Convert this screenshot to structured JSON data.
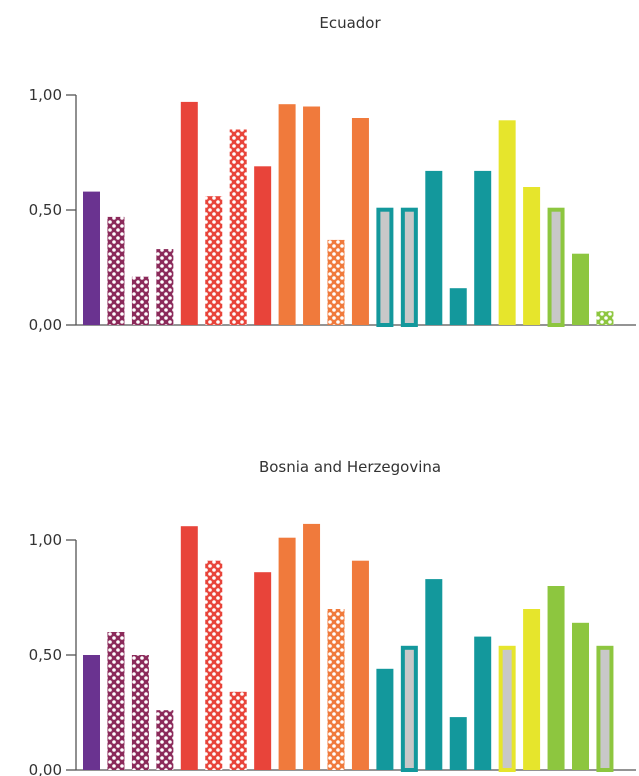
{
  "chart_data": [
    {
      "type": "bar",
      "title": "Ecuador",
      "ylim": [
        0,
        1.0
      ],
      "yticks": [
        "0,00",
        "0,50",
        "1,00"
      ],
      "grid": false,
      "legend": "none",
      "values": [
        0.58,
        0.47,
        0.21,
        0.33,
        0.97,
        0.56,
        0.85,
        0.69,
        0.96,
        0.95,
        0.37,
        0.9,
        0.51,
        0.51,
        0.67,
        0.16,
        0.67,
        0.89,
        0.6,
        0.51,
        0.31,
        0.06
      ],
      "colors": [
        "#6a3390",
        "#8b2a5a",
        "#8b2a5a",
        "#8b2a5a",
        "#e8443a",
        "#e8443a",
        "#e8443a",
        "#e8443a",
        "#f07a3c",
        "#f07a3c",
        "#f07a3c",
        "#f07a3c",
        "#13989c",
        "#13989c",
        "#13989c",
        "#13989c",
        "#13989c",
        "#e6e52c",
        "#e6e52c",
        "#8dc63f",
        "#8dc63f",
        "#8dc63f"
      ],
      "styles": [
        "solid",
        "dots",
        "dots",
        "dots",
        "solid",
        "dots",
        "dots",
        "solid",
        "solid",
        "solid",
        "dots",
        "solid",
        "outline",
        "outline",
        "solid",
        "solid",
        "solid",
        "solid",
        "solid",
        "outline",
        "solid",
        "dots"
      ]
    },
    {
      "type": "bar",
      "title": "Bosnia and Herzegovina",
      "ylim": [
        0,
        1.0
      ],
      "yticks": [
        "0,00",
        "0,50",
        "1,00"
      ],
      "grid": false,
      "legend": "none",
      "values": [
        0.5,
        0.6,
        0.5,
        0.26,
        1.06,
        0.91,
        0.34,
        0.86,
        1.01,
        1.07,
        0.7,
        0.91,
        0.44,
        0.54,
        0.83,
        0.23,
        0.58,
        0.54,
        0.7,
        0.8,
        0.64,
        0.54
      ],
      "colors": [
        "#6a3390",
        "#8b2a5a",
        "#8b2a5a",
        "#8b2a5a",
        "#e8443a",
        "#e8443a",
        "#e8443a",
        "#e8443a",
        "#f07a3c",
        "#f07a3c",
        "#f07a3c",
        "#f07a3c",
        "#13989c",
        "#13989c",
        "#13989c",
        "#13989c",
        "#13989c",
        "#e6e52c",
        "#e6e52c",
        "#8dc63f",
        "#8dc63f",
        "#8dc63f"
      ],
      "styles": [
        "solid",
        "dots",
        "dots",
        "dots",
        "solid",
        "dots",
        "dots",
        "solid",
        "solid",
        "solid",
        "dots",
        "solid",
        "solid",
        "outline",
        "solid",
        "solid",
        "solid",
        "outline",
        "solid",
        "solid",
        "solid",
        "outline"
      ]
    }
  ]
}
